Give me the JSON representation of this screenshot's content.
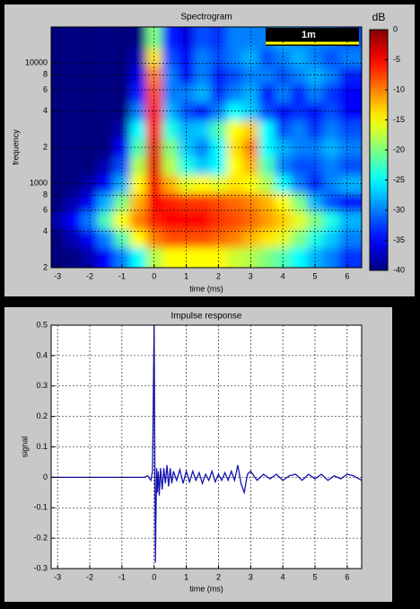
{
  "chart_data": [
    {
      "type": "heatmap",
      "title": "Spectrogram",
      "xlabel": "time (ms)",
      "ylabel": "frequency",
      "x": [
        -3,
        -2.5,
        -2,
        -1.5,
        -1,
        -0.5,
        0,
        0.5,
        1,
        1.5,
        2,
        2.5,
        3,
        3.5,
        4,
        4.5,
        5,
        5.5,
        6
      ],
      "y": [
        250,
        350,
        500,
        700,
        1000,
        1400,
        2000,
        2800,
        4000,
        5600,
        8000,
        11000,
        16000
      ],
      "z": [
        [
          -40,
          -40,
          -38,
          -35,
          -30,
          -25,
          -18,
          -15,
          -15,
          -15,
          -15,
          -17,
          -18,
          -20,
          -22,
          -25,
          -28,
          -30,
          -33
        ],
        [
          -40,
          -38,
          -35,
          -30,
          -22,
          -15,
          -10,
          -8,
          -8,
          -8,
          -9,
          -10,
          -12,
          -14,
          -16,
          -20,
          -24,
          -27,
          -30
        ],
        [
          -38,
          -35,
          -30,
          -22,
          -15,
          -10,
          -6,
          -5,
          -5,
          -5,
          -7,
          -8,
          -9,
          -11,
          -13,
          -16,
          -20,
          -24,
          -28
        ],
        [
          -40,
          -38,
          -35,
          -28,
          -20,
          -12,
          -5,
          -6,
          -7,
          -7,
          -8,
          -9,
          -10,
          -12,
          -15,
          -20,
          -28,
          -32,
          -35
        ],
        [
          -40,
          -40,
          -38,
          -35,
          -28,
          -15,
          -5,
          -12,
          -16,
          -15,
          -16,
          -14,
          -15,
          -18,
          -25,
          -30,
          -34,
          -30,
          -28
        ],
        [
          -40,
          -40,
          -40,
          -38,
          -32,
          -18,
          -4,
          -18,
          -24,
          -27,
          -25,
          -15,
          -12,
          -22,
          -30,
          -32,
          -32,
          -30,
          -32
        ],
        [
          -40,
          -40,
          -40,
          -40,
          -35,
          -22,
          -4,
          -20,
          -27,
          -30,
          -25,
          -14,
          -10,
          -25,
          -28,
          -30,
          -30,
          -28,
          -30
        ],
        [
          -40,
          -40,
          -40,
          -40,
          -38,
          -25,
          -5,
          -24,
          -28,
          -27,
          -22,
          -15,
          -13,
          -25,
          -32,
          -30,
          -33,
          -30,
          -32
        ],
        [
          -40,
          -40,
          -40,
          -40,
          -40,
          -30,
          -6,
          -28,
          -32,
          -35,
          -30,
          -25,
          -27,
          -32,
          -35,
          -33,
          -35,
          -32,
          -35
        ],
        [
          -40,
          -40,
          -40,
          -40,
          -40,
          -34,
          -8,
          -30,
          -30,
          -28,
          -33,
          -30,
          -28,
          -35,
          -30,
          -34,
          -30,
          -33,
          -35
        ],
        [
          -40,
          -40,
          -40,
          -40,
          -40,
          -36,
          -10,
          -30,
          -35,
          -30,
          -34,
          -32,
          -30,
          -30,
          -32,
          -30,
          -28,
          -30,
          -34
        ],
        [
          -40,
          -40,
          -40,
          -40,
          -40,
          -38,
          -14,
          -32,
          -35,
          -30,
          -32,
          -30,
          -28,
          -32,
          -30,
          -28,
          -30,
          -32,
          -30
        ],
        [
          -40,
          -40,
          -40,
          -40,
          -40,
          -40,
          -20,
          -34,
          -36,
          -32,
          -33,
          -30,
          -30,
          -30,
          -28,
          -30,
          -30,
          -30,
          -32
        ]
      ],
      "xlim": [
        -3.2,
        6.45
      ],
      "ylim": [
        200,
        20000
      ],
      "log_y": true,
      "grid": true,
      "xticks": [
        -3,
        -2,
        -1,
        0,
        1,
        2,
        3,
        4,
        5,
        6
      ],
      "yticks": [
        {
          "value": 200,
          "label": "2"
        },
        {
          "value": 400,
          "label": "4"
        },
        {
          "value": 600,
          "label": "6"
        },
        {
          "value": 800,
          "label": "8"
        },
        1000,
        {
          "value": 2000,
          "label": "2"
        },
        {
          "value": 4000,
          "label": "4"
        },
        {
          "value": 6000,
          "label": "6"
        },
        {
          "value": 8000,
          "label": "8"
        },
        10000
      ],
      "colormap": "jet",
      "colorbar_label": "dB",
      "clim": [
        -40,
        0
      ],
      "colorbar_ticks": [
        0,
        -5,
        -10,
        -15,
        -20,
        -25,
        -30,
        -35,
        -40
      ],
      "annotation": "1m"
    },
    {
      "type": "line",
      "title": "Impulse response",
      "xlabel": "time (ms)",
      "ylabel": "signal",
      "x": [
        -3.2,
        -0.3,
        -0.2,
        -0.1,
        -0.05,
        0,
        0.02,
        0.04,
        0.06,
        0.08,
        0.1,
        0.13,
        0.16,
        0.2,
        0.25,
        0.3,
        0.35,
        0.4,
        0.45,
        0.5,
        0.55,
        0.6,
        0.7,
        0.8,
        0.9,
        1.0,
        1.1,
        1.2,
        1.3,
        1.4,
        1.5,
        1.6,
        1.7,
        1.8,
        1.9,
        2.0,
        2.1,
        2.2,
        2.3,
        2.4,
        2.5,
        2.6,
        2.7,
        2.8,
        2.9,
        3.0,
        3.2,
        3.4,
        3.6,
        3.8,
        4.0,
        4.2,
        4.4,
        4.6,
        4.8,
        5.0,
        5.2,
        5.4,
        5.6,
        5.8,
        6.0,
        6.2,
        6.45
      ],
      "values": [
        0,
        0,
        0.005,
        -0.01,
        0.02,
        0.5,
        0.1,
        -0.28,
        -0.1,
        0.03,
        -0.05,
        0.02,
        -0.06,
        0.03,
        -0.04,
        0.03,
        -0.02,
        0.04,
        -0.03,
        0.03,
        -0.02,
        0.02,
        -0.01,
        0.025,
        -0.02,
        0.02,
        -0.015,
        0.02,
        -0.01,
        0.015,
        -0.02,
        0.01,
        -0.01,
        0.02,
        -0.015,
        0.01,
        -0.01,
        0.015,
        -0.01,
        0.02,
        -0.01,
        0.04,
        -0.02,
        -0.05,
        0.01,
        0.02,
        -0.01,
        0.01,
        -0.005,
        0.01,
        -0.01,
        0.005,
        0.01,
        -0.01,
        0.01,
        -0.005,
        0.01,
        -0.01,
        0.005,
        -0.005,
        0.01,
        0.005,
        -0.01
      ],
      "color": "#1414b4",
      "xlim": [
        -3.2,
        6.45
      ],
      "ylim": [
        -0.3,
        0.5
      ],
      "grid": true,
      "xticks": [
        -3,
        -2,
        -1,
        0,
        1,
        2,
        3,
        4,
        5,
        6
      ],
      "yticks": [
        -0.3,
        -0.2,
        -0.1,
        0,
        0.1,
        0.2,
        0.3,
        0.4,
        0.5
      ]
    }
  ]
}
